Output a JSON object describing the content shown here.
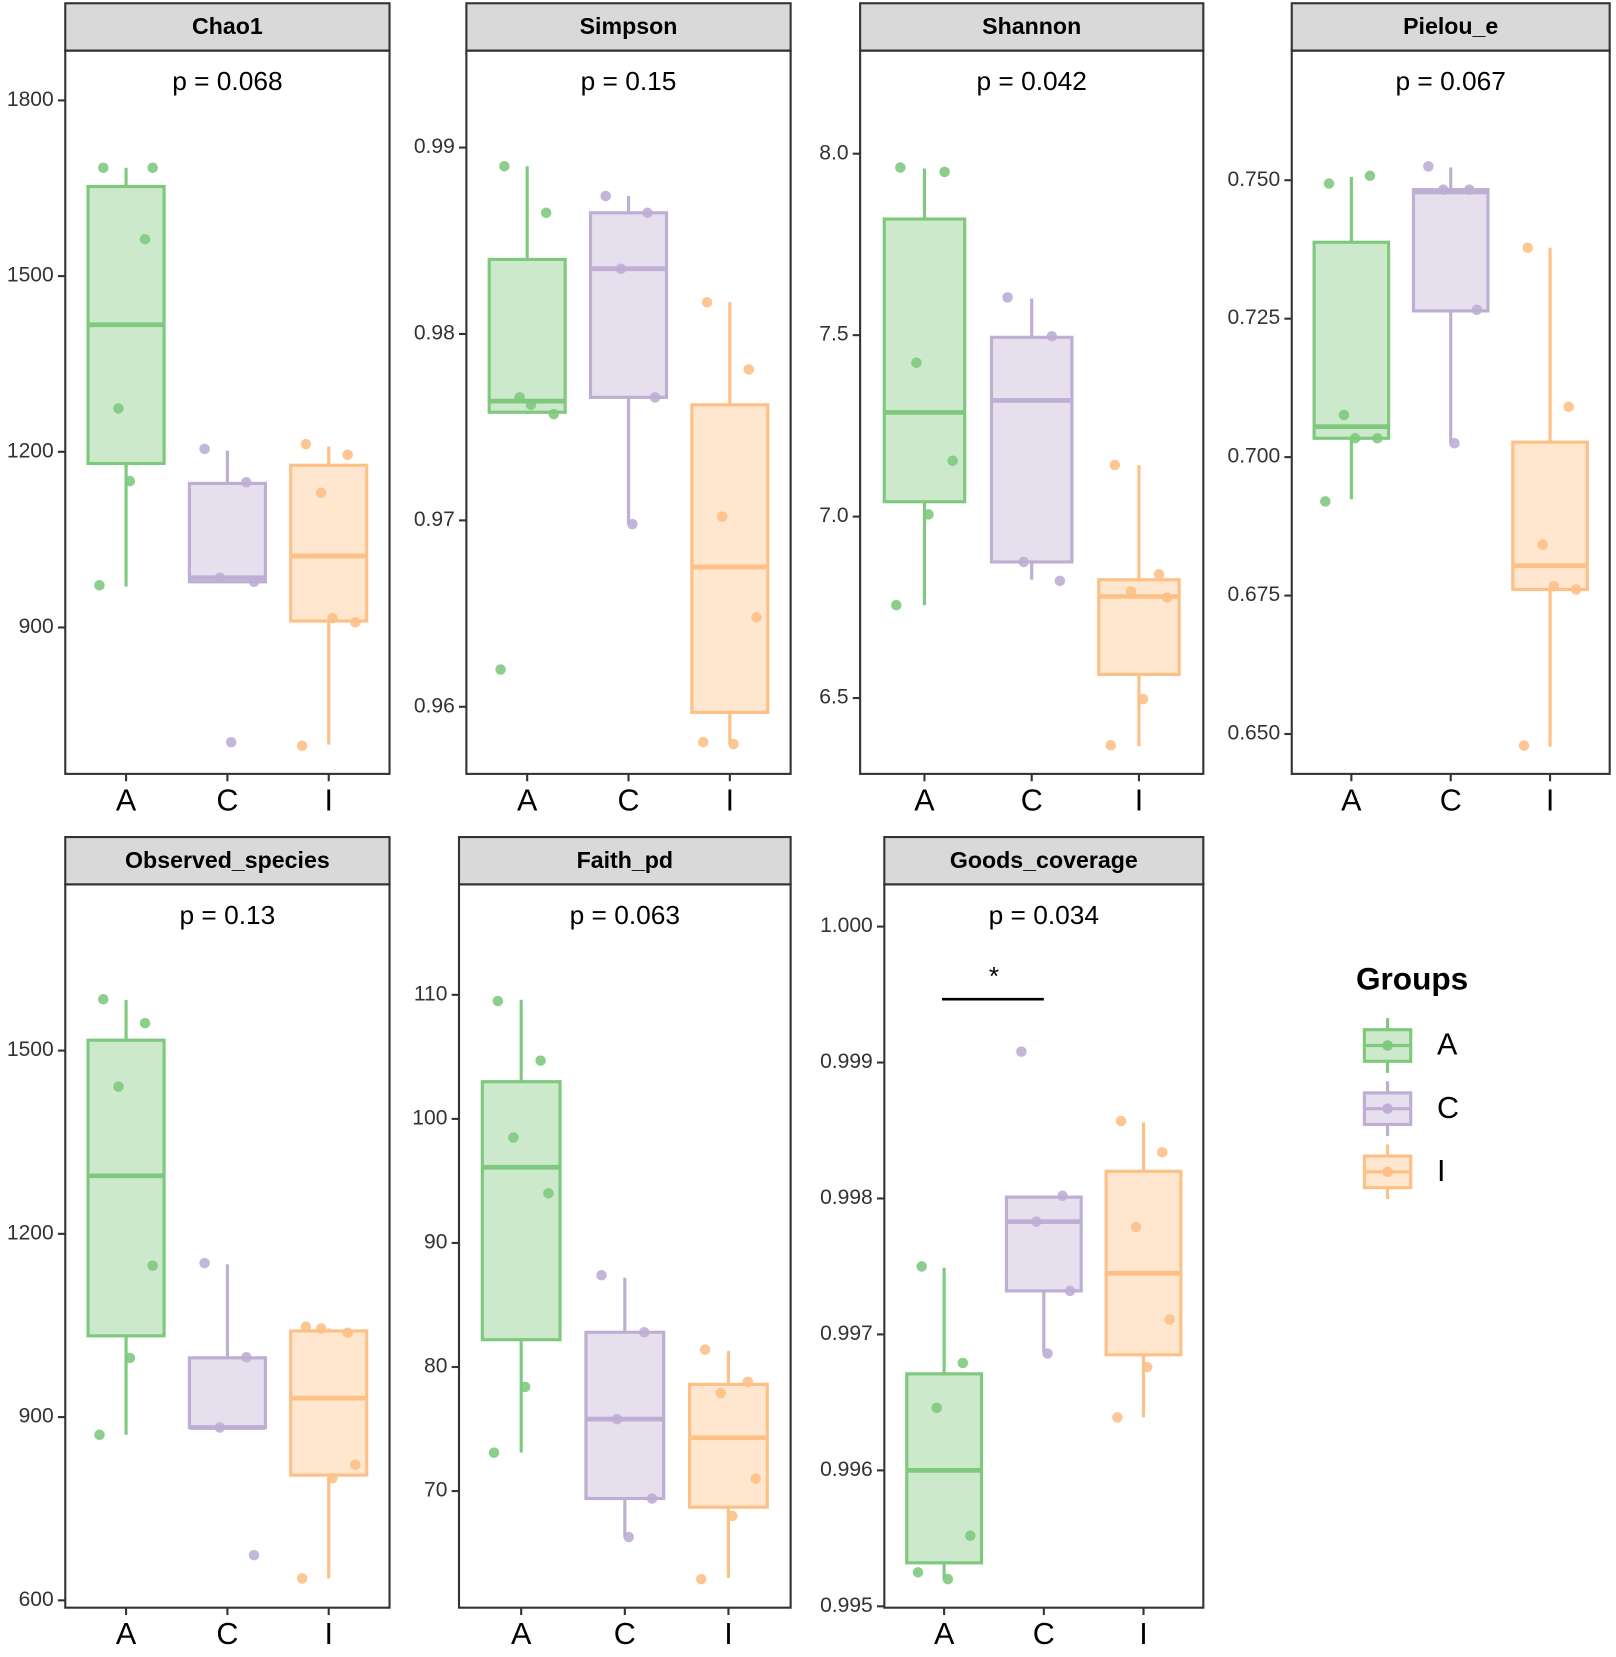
{
  "chart_data": [
    {
      "type": "box",
      "title": "Chao1",
      "annotation": "p = 0.068",
      "categories": [
        "A",
        "C",
        "I"
      ],
      "ylim": [
        650,
        1885
      ],
      "yticks": [
        900,
        1200,
        1500,
        1800
      ],
      "series": [
        {
          "name": "A",
          "color": "#7fc97f",
          "box": {
            "min": 970,
            "q1": 1180,
            "median": 1417,
            "q3": 1653,
            "max": 1685
          },
          "points": [
            1685,
            1563,
            1274,
            1685,
            1150,
            972
          ]
        },
        {
          "name": "C",
          "color": "#beaed4",
          "box": {
            "min": 978,
            "q1": 978,
            "median": 985,
            "q3": 1146,
            "max": 1202
          },
          "points": [
            1205,
            1148,
            985,
            978,
            704
          ]
        },
        {
          "name": "I",
          "color": "#fdc086",
          "box": {
            "min": 700,
            "q1": 911,
            "median": 1022,
            "q3": 1177,
            "max": 1209
          },
          "points": [
            1213,
            1195,
            1130,
            909,
            916,
            698
          ]
        }
      ]
    },
    {
      "type": "box",
      "title": "Simpson",
      "annotation": "p = 0.15",
      "categories": [
        "A",
        "C",
        "I"
      ],
      "ylim": [
        0.9564,
        0.9952
      ],
      "yticks": [
        0.96,
        0.97,
        0.98,
        0.99
      ],
      "series": [
        {
          "name": "A",
          "color": "#7fc97f",
          "box": {
            "min": 0.9757,
            "q1": 0.9758,
            "median": 0.9764,
            "q3": 0.984,
            "max": 0.989
          },
          "points": [
            0.989,
            0.9865,
            0.9766,
            0.9757,
            0.9762,
            0.962
          ]
        },
        {
          "name": "C",
          "color": "#beaed4",
          "box": {
            "min": 0.9698,
            "q1": 0.9766,
            "median": 0.9835,
            "q3": 0.9865,
            "max": 0.9874
          },
          "points": [
            0.9874,
            0.9865,
            0.9835,
            0.9766,
            0.9698
          ]
        },
        {
          "name": "I",
          "color": "#fdc086",
          "box": {
            "min": 0.958,
            "q1": 0.9597,
            "median": 0.9675,
            "q3": 0.9762,
            "max": 0.9817
          },
          "points": [
            0.9817,
            0.9781,
            0.9702,
            0.9648,
            0.958,
            0.9581
          ]
        }
      ]
    },
    {
      "type": "box",
      "title": "Shannon",
      "annotation": "p = 0.042",
      "categories": [
        "A",
        "C",
        "I"
      ],
      "ylim": [
        6.291,
        8.284
      ],
      "yticks": [
        6.5,
        {
          "value": 7,
          "label": "7.0"
        },
        7.5,
        {
          "value": 8,
          "label": "8.0"
        }
      ],
      "series": [
        {
          "name": "A",
          "color": "#7fc97f",
          "box": {
            "min": 6.756,
            "q1": 7.041,
            "median": 7.287,
            "q3": 7.82,
            "max": 7.959
          },
          "points": [
            7.962,
            7.95,
            7.424,
            7.154,
            7.006,
            6.756
          ]
        },
        {
          "name": "C",
          "color": "#beaed4",
          "box": {
            "min": 6.826,
            "q1": 6.875,
            "median": 7.32,
            "q3": 7.494,
            "max": 7.601
          },
          "points": [
            7.604,
            7.497,
            6.875,
            6.823
          ]
        },
        {
          "name": "I",
          "color": "#fdc086",
          "box": {
            "min": 6.367,
            "q1": 6.565,
            "median": 6.78,
            "q3": 6.826,
            "max": 7.142
          },
          "points": [
            7.142,
            6.841,
            6.794,
            6.777,
            6.497,
            6.37
          ]
        }
      ]
    },
    {
      "type": "box",
      "title": "Pielou_e",
      "annotation": "p = 0.067",
      "categories": [
        "A",
        "C",
        "I"
      ],
      "ylim": [
        0.6428,
        0.7734
      ],
      "yticks": [
        {
          "value": 0.65,
          "label": "0.650"
        },
        0.675,
        {
          "value": 0.7,
          "label": "0.700"
        },
        0.725,
        {
          "value": 0.75,
          "label": "0.750"
        }
      ],
      "series": [
        {
          "name": "A",
          "color": "#7fc97f",
          "box": {
            "min": 0.6924,
            "q1": 0.7034,
            "median": 0.7055,
            "q3": 0.7388,
            "max": 0.7506
          },
          "points": [
            0.7494,
            0.7508,
            0.7076,
            0.7034,
            0.7034,
            0.692
          ]
        },
        {
          "name": "C",
          "color": "#beaed4",
          "box": {
            "min": 0.7025,
            "q1": 0.7264,
            "median": 0.7479,
            "q3": 0.7483,
            "max": 0.7523
          },
          "points": [
            0.7525,
            0.7483,
            0.7483,
            0.7266,
            0.7025
          ]
        },
        {
          "name": "I",
          "color": "#fdc086",
          "box": {
            "min": 0.6477,
            "q1": 0.6761,
            "median": 0.6804,
            "q3": 0.7027,
            "max": 0.7378
          },
          "points": [
            0.7378,
            0.7091,
            0.6842,
            0.6761,
            0.6767,
            0.6479
          ]
        }
      ]
    },
    {
      "type": "box",
      "title": "Observed_species",
      "annotation": "p = 0.13",
      "categories": [
        "A",
        "C",
        "I"
      ],
      "ylim": [
        588,
        1772
      ],
      "yticks": [
        600,
        900,
        1200,
        1500
      ],
      "series": [
        {
          "name": "A",
          "color": "#7fc97f",
          "box": {
            "min": 871,
            "q1": 1033,
            "median": 1295,
            "q3": 1517,
            "max": 1583
          },
          "points": [
            1584,
            1545,
            1441,
            1148,
            997,
            871
          ]
        },
        {
          "name": "C",
          "color": "#beaed4",
          "box": {
            "min": 883,
            "q1": 883,
            "median": 883,
            "q3": 997,
            "max": 1150
          },
          "points": [
            1152,
            998,
            883,
            674
          ]
        },
        {
          "name": "I",
          "color": "#fdc086",
          "box": {
            "min": 636,
            "q1": 805,
            "median": 931,
            "q3": 1041,
            "max": 1045
          },
          "points": [
            1048,
            1038,
            1045,
            822,
            800,
            636
          ]
        }
      ]
    },
    {
      "type": "box",
      "title": "Faith_pd",
      "annotation": "p = 0.063",
      "categories": [
        "A",
        "C",
        "I"
      ],
      "ylim": [
        60.6,
        118.9
      ],
      "yticks": [
        70,
        80,
        90,
        100,
        110
      ],
      "series": [
        {
          "name": "A",
          "color": "#7fc97f",
          "box": {
            "min": 73.1,
            "q1": 82.2,
            "median": 96.1,
            "q3": 103,
            "max": 109.6
          },
          "points": [
            109.5,
            104.7,
            98.5,
            94,
            78.4,
            73.1
          ]
        },
        {
          "name": "C",
          "color": "#beaed4",
          "box": {
            "min": 66.3,
            "q1": 69.4,
            "median": 75.8,
            "q3": 82.8,
            "max": 87.2
          },
          "points": [
            87.4,
            82.8,
            75.8,
            69.4,
            66.3
          ]
        },
        {
          "name": "I",
          "color": "#fdc086",
          "box": {
            "min": 63,
            "q1": 68.7,
            "median": 74.3,
            "q3": 78.6,
            "max": 81.3
          },
          "points": [
            81.4,
            78.8,
            77.9,
            71,
            68,
            62.9
          ]
        }
      ]
    },
    {
      "type": "box",
      "title": "Goods_coverage",
      "annotation": "p = 0.034",
      "categories": [
        "A",
        "C",
        "I"
      ],
      "ylim": [
        0.99499,
        1.00031
      ],
      "yticks": [
        0.995,
        0.996,
        0.997,
        0.998,
        0.999,
        {
          "value": 1,
          "label": "1.000"
        }
      ],
      "significance": [
        {
          "label": "*",
          "pair": [
            "A",
            "C"
          ]
        }
      ],
      "series": [
        {
          "name": "A",
          "color": "#7fc97f",
          "box": {
            "min": 0.9952,
            "q1": 0.99532,
            "median": 0.996,
            "q3": 0.99671,
            "max": 0.99749
          },
          "points": [
            0.9975,
            0.99679,
            0.99646,
            0.99552,
            0.9952,
            0.99525
          ]
        },
        {
          "name": "C",
          "color": "#beaed4",
          "box": {
            "min": 0.99687,
            "q1": 0.99732,
            "median": 0.99783,
            "q3": 0.99801,
            "max": 0.99802
          },
          "points": [
            0.99908,
            0.99802,
            0.99783,
            0.99732,
            0.99686
          ]
        },
        {
          "name": "I",
          "color": "#fdc086",
          "box": {
            "min": 0.99639,
            "q1": 0.99685,
            "median": 0.99745,
            "q3": 0.9982,
            "max": 0.99856
          },
          "points": [
            0.99857,
            0.99834,
            0.99779,
            0.99711,
            0.99676,
            0.99639
          ]
        }
      ]
    }
  ],
  "legend": {
    "title": "Groups"
  }
}
